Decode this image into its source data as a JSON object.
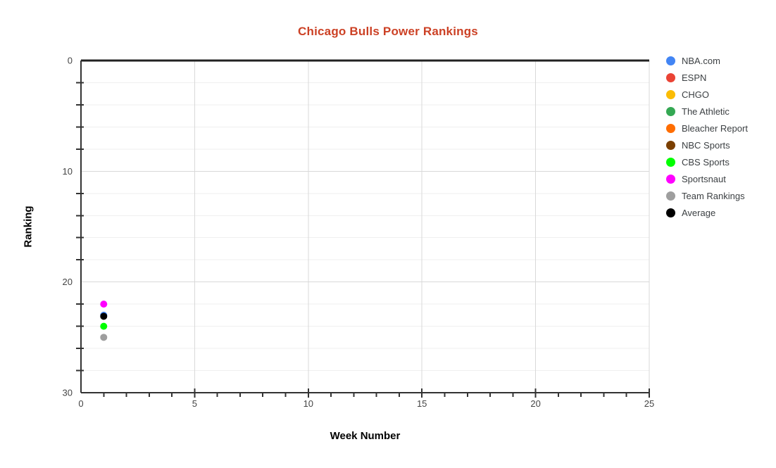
{
  "chart_data": {
    "type": "scatter",
    "title": "Chicago Bulls Power Rankings",
    "title_color": "#cc4125",
    "xlabel": "Week Number",
    "ylabel": "Ranking",
    "xlim": [
      0,
      25
    ],
    "ylim": [
      0,
      30
    ],
    "y_axis_direction": "inverted (0 at top, 30 at bottom)",
    "x_ticks": [
      0,
      5,
      10,
      15,
      20,
      25
    ],
    "y_ticks": [
      0,
      10,
      20,
      30
    ],
    "x_minor_tick_step": 1,
    "y_minor_tick_step": 2,
    "grid": {
      "horizontal_gridlines_every": 2,
      "vertical_gridlines_at": [
        5,
        10,
        15,
        20,
        25
      ]
    },
    "legend_position": "right",
    "series": [
      {
        "name": "NBA.com",
        "color": "#4285f4",
        "points": [
          {
            "week": 1,
            "ranking": 23
          }
        ]
      },
      {
        "name": "ESPN",
        "color": "#ea4335",
        "points": []
      },
      {
        "name": "CHGO",
        "color": "#fbbc04",
        "points": []
      },
      {
        "name": "The Athletic",
        "color": "#34a853",
        "points": []
      },
      {
        "name": "Bleacher Report",
        "color": "#ff6d01",
        "points": []
      },
      {
        "name": "NBC Sports",
        "color": "#7b3f00",
        "points": []
      },
      {
        "name": "CBS Sports",
        "color": "#00ff00",
        "points": [
          {
            "week": 1,
            "ranking": 24
          }
        ]
      },
      {
        "name": "Sportsnaut",
        "color": "#ff00ff",
        "points": [
          {
            "week": 1,
            "ranking": 22
          }
        ]
      },
      {
        "name": "Team Rankings",
        "color": "#9e9e9e",
        "points": [
          {
            "week": 1,
            "ranking": 25
          }
        ]
      },
      {
        "name": "Average",
        "color": "#000000",
        "points": [
          {
            "week": 1,
            "ranking": 23.1
          }
        ]
      }
    ],
    "note": "Markers for sources without visible points are hidden behind overlapping week-1 dots.",
    "style_colors": {
      "background": "#ffffff",
      "axis_line": "#333333",
      "top_border": "#212121",
      "grid_minor": "#efefef",
      "grid_major": "#d9d9d9",
      "tick_label": "#444444",
      "legend_text": "#3c4043"
    }
  }
}
